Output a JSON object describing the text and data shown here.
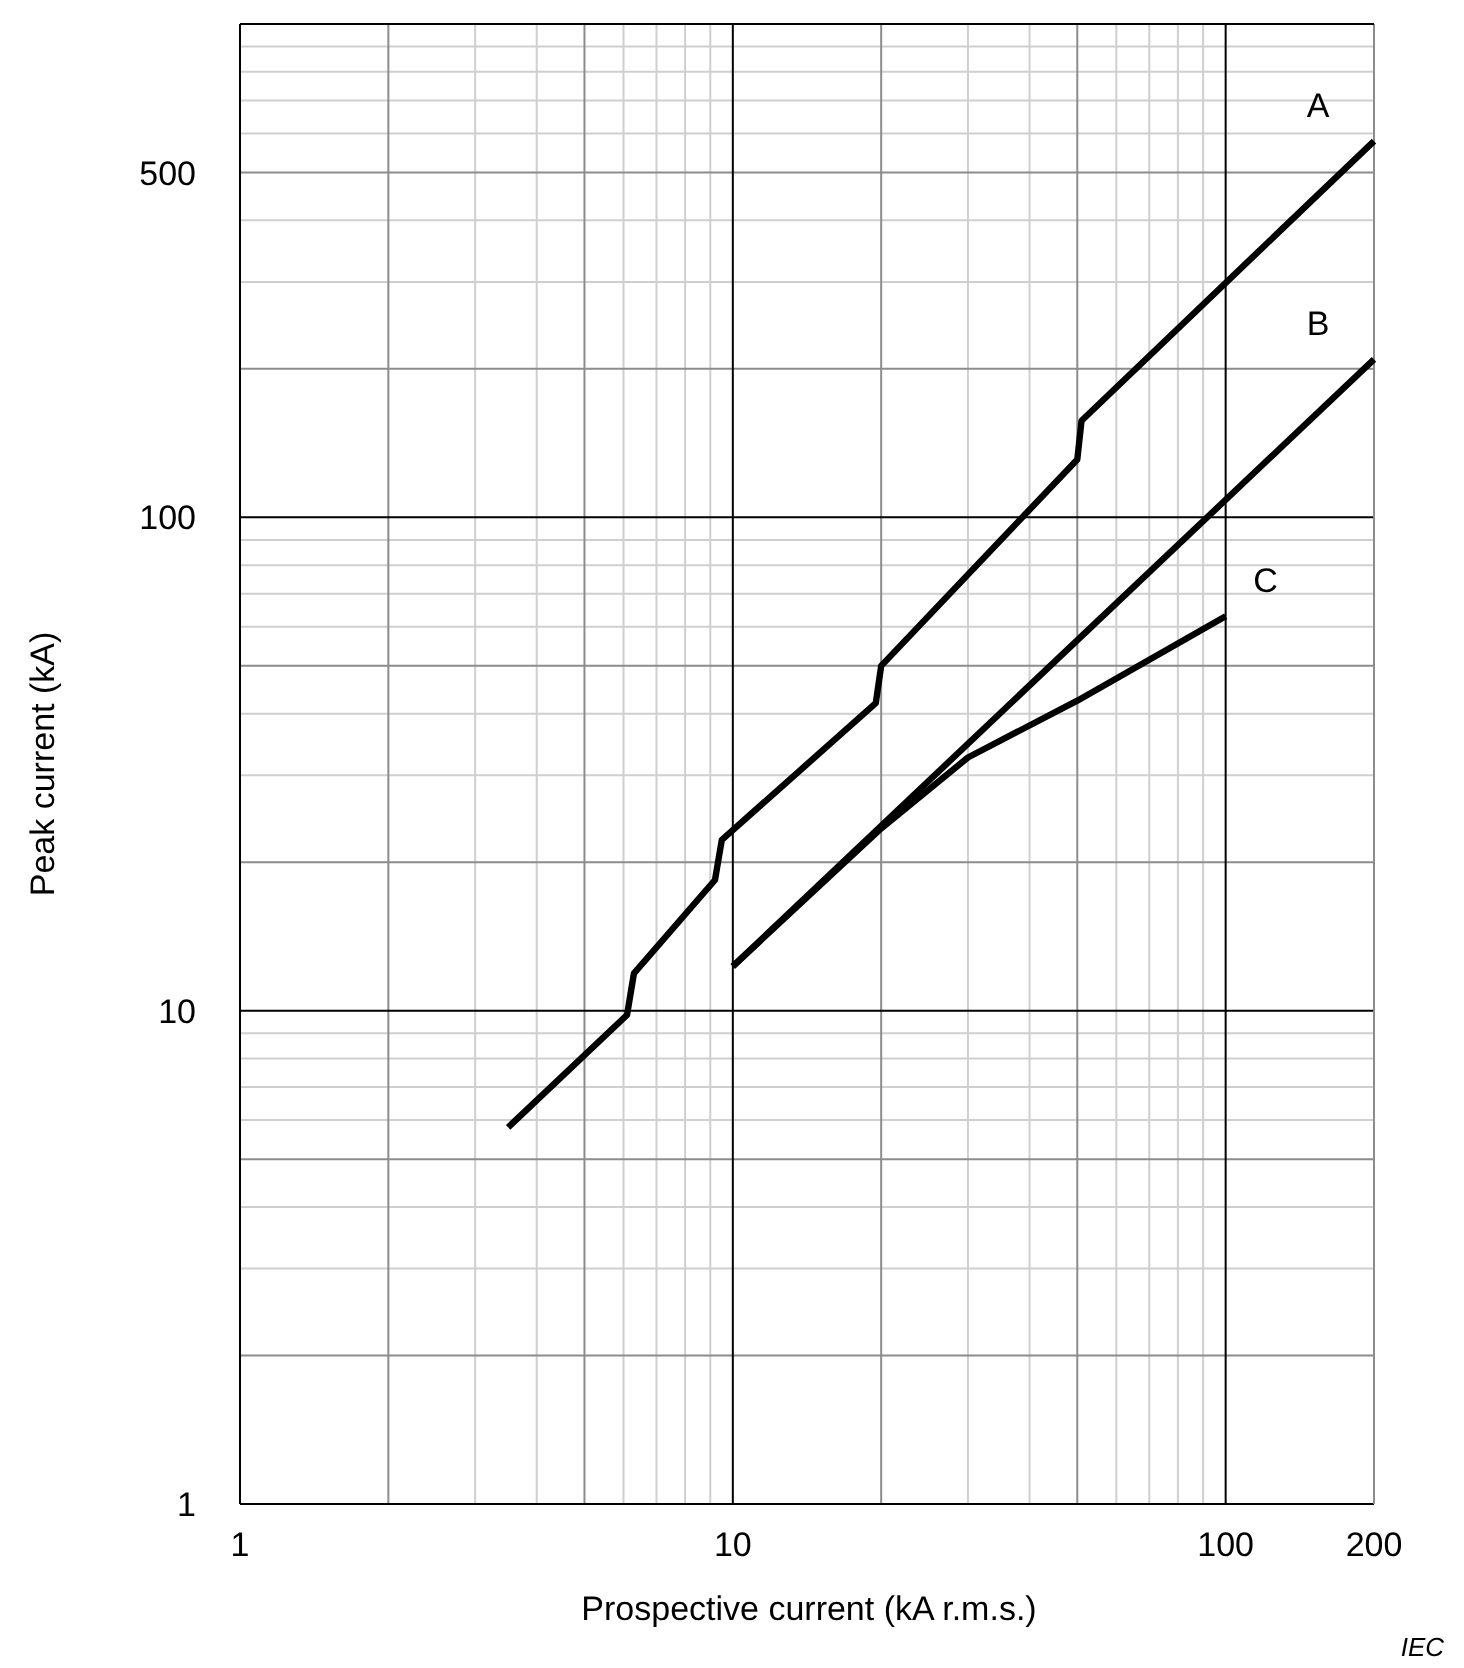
{
  "chart_data": {
    "type": "line",
    "xlabel": "Prospective current   (kA r.m.s.)",
    "ylabel": "Peak current   (kA)",
    "log": "xy",
    "grid": true,
    "marker": "none",
    "line_style": "solid",
    "xlim": [
      1,
      200
    ],
    "ylim": [
      1,
      1000
    ],
    "xticks": [
      1,
      10,
      100,
      200
    ],
    "yticks": [
      1,
      10,
      100,
      500
    ],
    "annotations": [
      "IEC"
    ],
    "series": [
      {
        "name": "A",
        "color": "#000000",
        "x": [
          3.5,
          6.1,
          6.3,
          9.2,
          9.5,
          19.5,
          20,
          50,
          51,
          200
        ],
        "values": [
          5.8,
          9.8,
          11.9,
          18.4,
          22.2,
          42,
          50,
          131,
          157,
          579
        ]
      },
      {
        "name": "B",
        "color": "#000000",
        "x": [
          10,
          200
        ],
        "values": [
          12.3,
          209
        ]
      },
      {
        "name": "C",
        "color": "#000000",
        "x": [
          10,
          20,
          30,
          50,
          100
        ],
        "values": [
          12.3,
          23.4,
          32.6,
          42.5,
          63
        ]
      }
    ]
  }
}
